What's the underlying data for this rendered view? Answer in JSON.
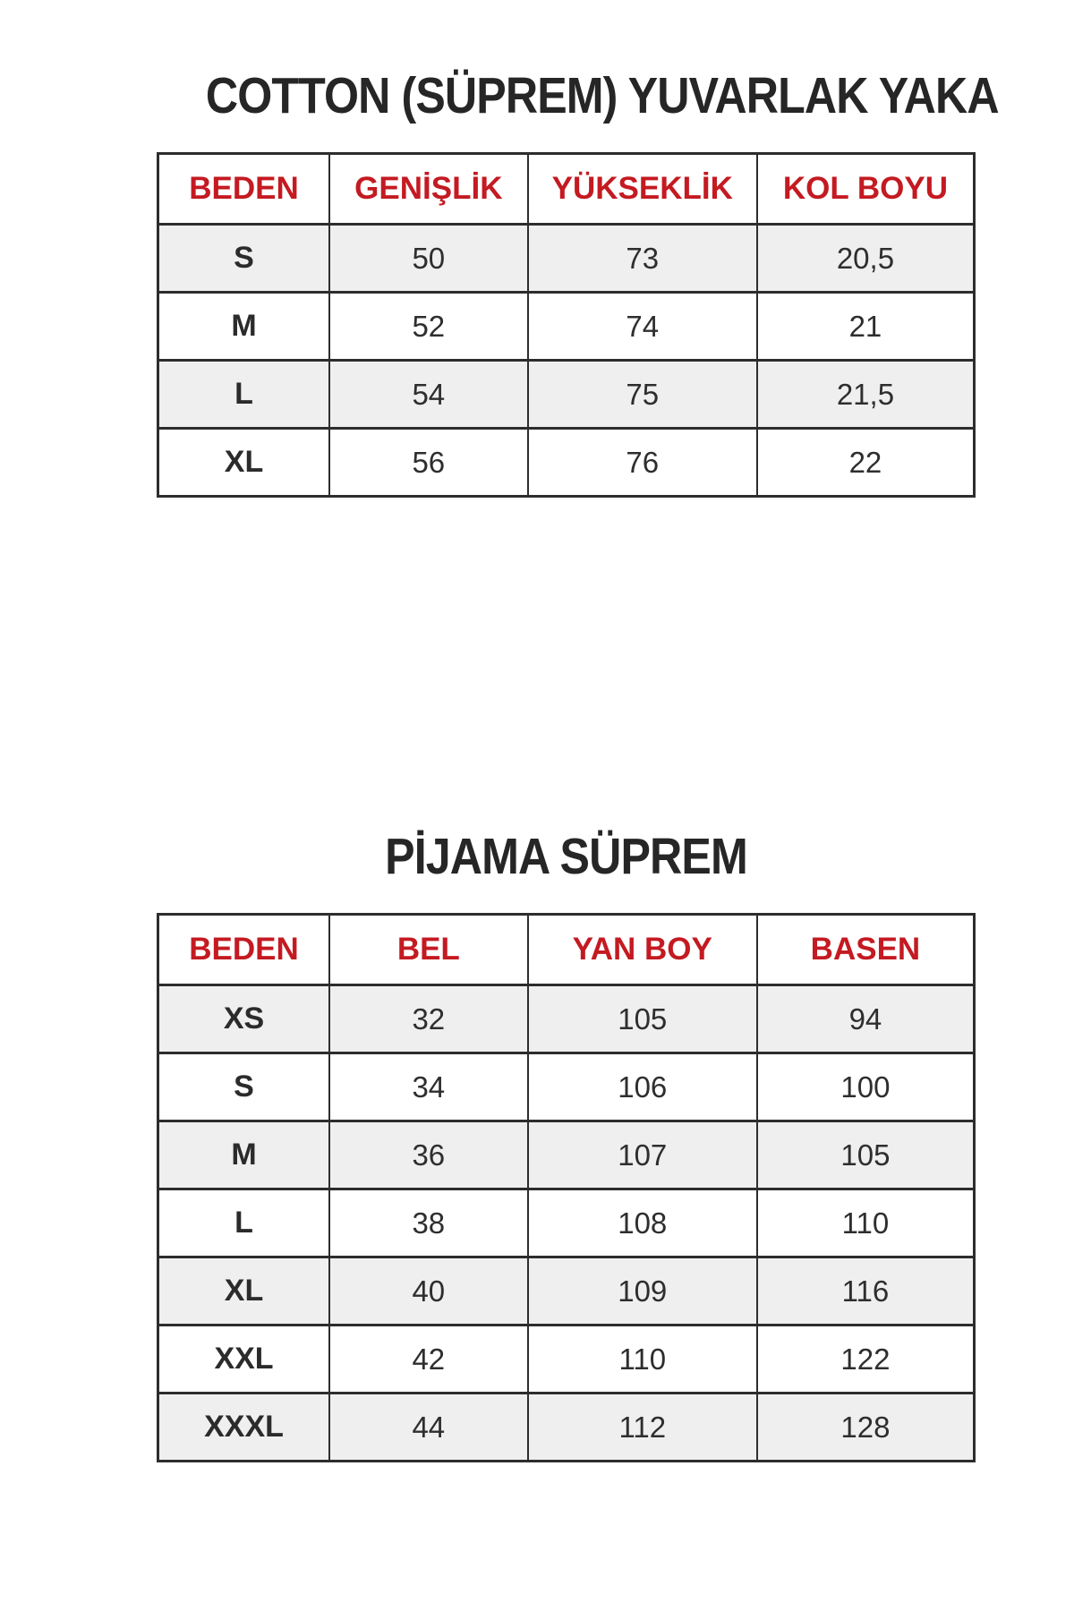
{
  "colors": {
    "header_text": "#c41a21",
    "title_text": "#262626",
    "cell_text": "#2e2e2e",
    "border": "#2d2d2d",
    "alt_row_bg": "#efefef",
    "page_bg": "#ffffff"
  },
  "tables": [
    {
      "title": "COTTON (SÜPREM) YUVARLAK YAKA",
      "columns": [
        "BEDEN",
        "GENİŞLİK",
        "YÜKSEKLİK",
        "KOL BOYU"
      ],
      "rows": [
        [
          "S",
          "50",
          "73",
          "20,5"
        ],
        [
          "M",
          "52",
          "74",
          "21"
        ],
        [
          "L",
          "54",
          "75",
          "21,5"
        ],
        [
          "XL",
          "56",
          "76",
          "22"
        ]
      ]
    },
    {
      "title": "PİJAMA SÜPREM",
      "columns": [
        "BEDEN",
        "BEL",
        "YAN BOY",
        "BASEN"
      ],
      "rows": [
        [
          "XS",
          "32",
          "105",
          "94"
        ],
        [
          "S",
          "34",
          "106",
          "100"
        ],
        [
          "M",
          "36",
          "107",
          "105"
        ],
        [
          "L",
          "38",
          "108",
          "110"
        ],
        [
          "XL",
          "40",
          "109",
          "116"
        ],
        [
          "XXL",
          "42",
          "110",
          "122"
        ],
        [
          "XXXL",
          "44",
          "112",
          "128"
        ]
      ]
    }
  ]
}
